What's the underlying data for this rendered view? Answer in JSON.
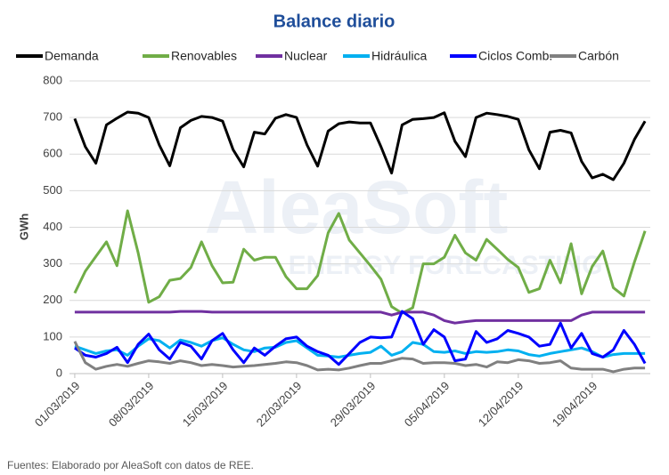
{
  "chart_data": {
    "type": "line",
    "title": "Balance diario",
    "y_label": "GWh",
    "watermark": [
      "AleaSoft",
      "ENERGY FORECASTING"
    ],
    "source": "Fuentes: Elaborado por AleaSoft con datos de REE.",
    "categories": [
      "01/03/2019",
      null,
      null,
      null,
      null,
      null,
      null,
      "08/03/2019",
      null,
      null,
      null,
      null,
      null,
      null,
      "15/03/2019",
      null,
      null,
      null,
      null,
      null,
      null,
      "22/03/2019",
      null,
      null,
      null,
      null,
      null,
      null,
      "29/03/2019",
      null,
      null,
      null,
      null,
      null,
      null,
      "05/04/2019",
      null,
      null,
      null,
      null,
      null,
      null,
      "12/04/2019",
      null,
      null,
      null,
      null,
      null,
      null,
      "19/04/2019",
      null,
      null,
      null,
      null,
      null
    ],
    "ylim": [
      0,
      800
    ],
    "yticks": [
      0,
      100,
      200,
      300,
      400,
      500,
      600,
      700,
      800
    ],
    "grid": true,
    "series": [
      {
        "name": "Demanda",
        "color": "#000000",
        "values": [
          697,
          620,
          575,
          680,
          698,
          715,
          712,
          700,
          625,
          568,
          672,
          692,
          703,
          700,
          690,
          612,
          565,
          660,
          655,
          698,
          708,
          700,
          625,
          567,
          663,
          683,
          688,
          685,
          685,
          620,
          548,
          680,
          695,
          697,
          700,
          713,
          635,
          593,
          700,
          712,
          708,
          703,
          695,
          612,
          560,
          660,
          665,
          658,
          580,
          535,
          545,
          530,
          575,
          640,
          690
        ]
      },
      {
        "name": "Renovables",
        "color": "#70ad47",
        "values": [
          220,
          280,
          320,
          360,
          295,
          445,
          330,
          195,
          210,
          255,
          260,
          290,
          360,
          295,
          248,
          250,
          340,
          310,
          318,
          318,
          265,
          232,
          232,
          268,
          385,
          438,
          365,
          330,
          295,
          258,
          183,
          165,
          180,
          300,
          300,
          318,
          378,
          330,
          310,
          367,
          340,
          312,
          290,
          222,
          232,
          310,
          248,
          355,
          218,
          293,
          335,
          235,
          212,
          305,
          390
        ]
      },
      {
        "name": "Nuclear",
        "color": "#7030a0",
        "values": [
          168,
          168,
          168,
          168,
          168,
          168,
          168,
          168,
          168,
          168,
          170,
          170,
          170,
          168,
          168,
          168,
          168,
          168,
          168,
          168,
          168,
          168,
          168,
          168,
          168,
          168,
          168,
          168,
          168,
          168,
          160,
          168,
          168,
          168,
          160,
          145,
          138,
          142,
          145,
          145,
          145,
          145,
          145,
          145,
          145,
          145,
          145,
          145,
          160,
          168,
          168,
          168,
          168,
          168,
          168
        ]
      },
      {
        "name": "Hidráulica",
        "color": "#00b0f0",
        "values": [
          75,
          65,
          55,
          62,
          65,
          50,
          75,
          95,
          90,
          70,
          92,
          85,
          75,
          90,
          98,
          80,
          65,
          60,
          70,
          72,
          85,
          90,
          70,
          50,
          48,
          45,
          50,
          55,
          58,
          75,
          50,
          60,
          85,
          80,
          60,
          58,
          62,
          55,
          60,
          58,
          60,
          65,
          62,
          52,
          48,
          55,
          60,
          65,
          70,
          60,
          45,
          52,
          55,
          55,
          55
        ]
      },
      {
        "name": "Ciclos Comb.",
        "color": "#0000ff",
        "values": [
          70,
          50,
          45,
          55,
          72,
          30,
          80,
          108,
          65,
          40,
          85,
          75,
          40,
          90,
          110,
          65,
          30,
          70,
          50,
          75,
          95,
          100,
          75,
          60,
          50,
          25,
          55,
          85,
          100,
          98,
          100,
          170,
          150,
          80,
          120,
          100,
          35,
          40,
          115,
          85,
          95,
          118,
          110,
          100,
          75,
          80,
          138,
          70,
          110,
          55,
          45,
          65,
          118,
          80,
          28
        ]
      },
      {
        "name": "Carbón",
        "color": "#808080",
        "values": [
          88,
          30,
          12,
          20,
          25,
          20,
          28,
          35,
          32,
          28,
          35,
          30,
          22,
          25,
          22,
          18,
          20,
          22,
          25,
          28,
          32,
          30,
          22,
          10,
          12,
          10,
          15,
          22,
          28,
          28,
          35,
          42,
          40,
          28,
          30,
          30,
          28,
          22,
          25,
          18,
          32,
          30,
          38,
          35,
          28,
          30,
          35,
          15,
          12,
          12,
          12,
          5,
          12,
          15,
          15
        ]
      }
    ]
  }
}
